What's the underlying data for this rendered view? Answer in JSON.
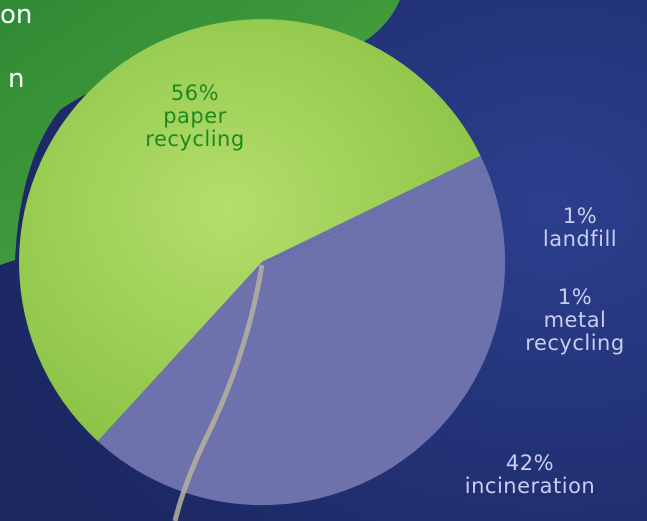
{
  "chart_data": {
    "type": "pie",
    "slices": [
      {
        "label": "paper recycling",
        "value": 56,
        "value_text": "56%"
      },
      {
        "label": "landfill",
        "value": 1,
        "value_text": "1%"
      },
      {
        "label": "metal recycling",
        "value": 1,
        "value_text": "1%"
      },
      {
        "label": "incineration",
        "value": 42,
        "value_text": "42%"
      }
    ],
    "colors": {
      "background": "#22306e",
      "paper_recycling": "#a6d65a",
      "incineration": "#6d72ad",
      "leaf_dark": "#3c9a3c",
      "label_green": "#1e8a1e",
      "label_light": "#c8cdf0"
    }
  },
  "cropped_title": {
    "line1": "on",
    "line2": "n"
  }
}
